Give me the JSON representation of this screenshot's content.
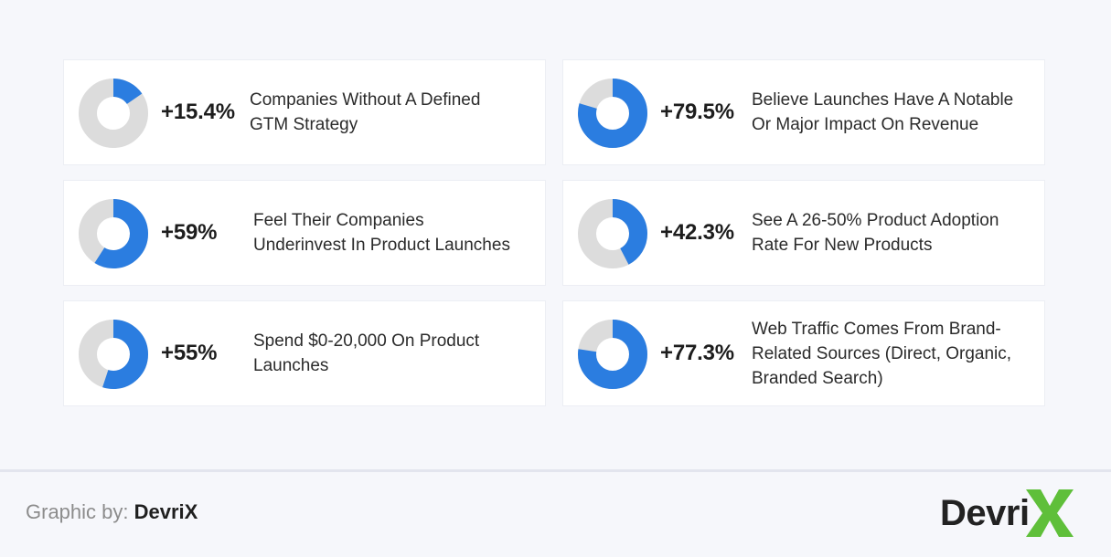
{
  "chart_data": {
    "type": "pie",
    "variant": "donut",
    "colors": {
      "filled": "#2b7de0",
      "remaining": "#dcdcdc"
    },
    "items": [
      {
        "label": "+15.4%",
        "value": 15.4,
        "lines": [
          "Companies Without A Defined",
          "GTM Strategy"
        ]
      },
      {
        "label": "+79.5%",
        "value": 79.5,
        "lines": [
          "Believe Launches Have A Notable",
          "Or Major Impact On Revenue"
        ]
      },
      {
        "label": "+59%",
        "value": 59,
        "lines": [
          "Feel Their Companies",
          "Underinvest In Product Launches"
        ]
      },
      {
        "label": "+42.3%",
        "value": 42.3,
        "lines": [
          "See A 26-50% Product Adoption",
          "Rate For New Products"
        ]
      },
      {
        "label": "+55%",
        "value": 55,
        "lines": [
          "Spend $0-20,000 On Product",
          "Launches"
        ]
      },
      {
        "label": "+77.3%",
        "value": 77.3,
        "lines": [
          "Web Traffic Comes From Brand-",
          "Related Sources (Direct, Organic,",
          "Branded Search)"
        ]
      }
    ]
  },
  "footer": {
    "credit_prefix": "Graphic by:",
    "credit_brand": "DevriX",
    "logo_text": "Devri",
    "logo_x_color": "#5fbf3a"
  }
}
